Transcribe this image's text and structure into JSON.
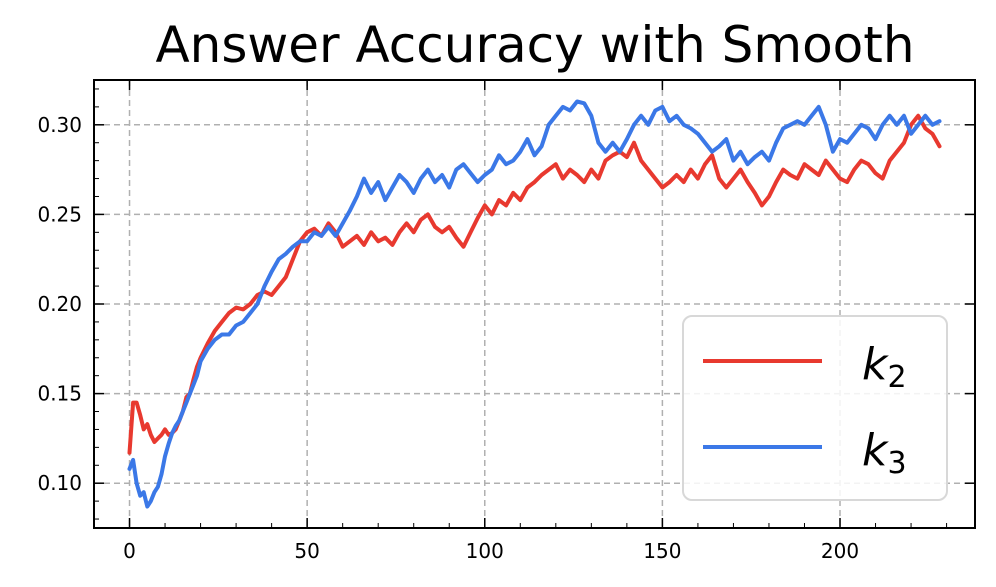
{
  "chart_data": {
    "type": "line",
    "title": "Answer Accuracy with Smooth",
    "xlabel": "",
    "ylabel": "",
    "xlim": [
      -10,
      238
    ],
    "ylim": [
      0.075,
      0.325
    ],
    "xticks": [
      0,
      50,
      100,
      150,
      200
    ],
    "xtick_labels": [
      "0",
      "50",
      "100",
      "150",
      "200"
    ],
    "yticks": [
      0.1,
      0.15,
      0.2,
      0.25,
      0.3
    ],
    "ytick_labels": [
      "0.10",
      "0.15",
      "0.20",
      "0.25",
      "0.30"
    ],
    "grid": true,
    "legend_position": "lower-right",
    "series": [
      {
        "name": "k",
        "name_subscript": "2",
        "color": "#e8392f",
        "x": [
          0,
          1,
          2,
          3,
          4,
          5,
          6,
          7,
          8,
          9,
          10,
          11,
          12,
          13,
          14,
          15,
          16,
          17,
          18,
          19,
          20,
          22,
          24,
          26,
          28,
          30,
          32,
          34,
          36,
          38,
          40,
          42,
          44,
          46,
          48,
          50,
          52,
          54,
          56,
          58,
          60,
          62,
          64,
          66,
          68,
          70,
          72,
          74,
          76,
          78,
          80,
          82,
          84,
          86,
          88,
          90,
          92,
          94,
          96,
          98,
          100,
          102,
          104,
          106,
          108,
          110,
          112,
          114,
          116,
          118,
          120,
          122,
          124,
          126,
          128,
          130,
          132,
          134,
          136,
          138,
          140,
          142,
          144,
          146,
          148,
          150,
          152,
          154,
          156,
          158,
          160,
          162,
          164,
          166,
          168,
          170,
          172,
          174,
          176,
          178,
          180,
          182,
          184,
          186,
          188,
          190,
          192,
          194,
          196,
          198,
          200,
          202,
          204,
          206,
          208,
          210,
          212,
          214,
          216,
          218,
          220,
          222,
          224,
          226,
          228
        ],
        "values": [
          0.117,
          0.145,
          0.145,
          0.138,
          0.13,
          0.133,
          0.127,
          0.123,
          0.125,
          0.127,
          0.13,
          0.127,
          0.128,
          0.13,
          0.135,
          0.14,
          0.148,
          0.15,
          0.158,
          0.165,
          0.17,
          0.178,
          0.185,
          0.19,
          0.195,
          0.198,
          0.197,
          0.2,
          0.205,
          0.207,
          0.205,
          0.21,
          0.215,
          0.225,
          0.235,
          0.24,
          0.242,
          0.238,
          0.245,
          0.24,
          0.232,
          0.235,
          0.238,
          0.233,
          0.24,
          0.235,
          0.237,
          0.233,
          0.24,
          0.245,
          0.24,
          0.247,
          0.25,
          0.243,
          0.24,
          0.243,
          0.237,
          0.232,
          0.24,
          0.248,
          0.255,
          0.25,
          0.258,
          0.255,
          0.262,
          0.258,
          0.265,
          0.268,
          0.272,
          0.275,
          0.278,
          0.27,
          0.275,
          0.272,
          0.268,
          0.275,
          0.27,
          0.28,
          0.283,
          0.285,
          0.282,
          0.29,
          0.28,
          0.275,
          0.27,
          0.265,
          0.268,
          0.272,
          0.268,
          0.275,
          0.27,
          0.278,
          0.283,
          0.27,
          0.265,
          0.27,
          0.275,
          0.268,
          0.262,
          0.255,
          0.26,
          0.268,
          0.275,
          0.272,
          0.27,
          0.278,
          0.275,
          0.272,
          0.28,
          0.275,
          0.27,
          0.268,
          0.275,
          0.28,
          0.278,
          0.273,
          0.27,
          0.28,
          0.285,
          0.29,
          0.3,
          0.305,
          0.298,
          0.295,
          0.288
        ]
      },
      {
        "name": "k",
        "name_subscript": "3",
        "color": "#3b78e7",
        "x": [
          0,
          1,
          2,
          3,
          4,
          5,
          6,
          7,
          8,
          9,
          10,
          11,
          12,
          13,
          14,
          15,
          16,
          17,
          18,
          19,
          20,
          22,
          24,
          26,
          28,
          30,
          32,
          34,
          36,
          38,
          40,
          42,
          44,
          46,
          48,
          50,
          52,
          54,
          56,
          58,
          60,
          62,
          64,
          66,
          68,
          70,
          72,
          74,
          76,
          78,
          80,
          82,
          84,
          86,
          88,
          90,
          92,
          94,
          96,
          98,
          100,
          102,
          104,
          106,
          108,
          110,
          112,
          114,
          116,
          118,
          120,
          122,
          124,
          126,
          128,
          130,
          132,
          134,
          136,
          138,
          140,
          142,
          144,
          146,
          148,
          150,
          152,
          154,
          156,
          158,
          160,
          162,
          164,
          166,
          168,
          170,
          172,
          174,
          176,
          178,
          180,
          182,
          184,
          186,
          188,
          190,
          192,
          194,
          196,
          198,
          200,
          202,
          204,
          206,
          208,
          210,
          212,
          214,
          216,
          218,
          220,
          222,
          224,
          226,
          228
        ],
        "values": [
          0.108,
          0.113,
          0.1,
          0.093,
          0.095,
          0.087,
          0.09,
          0.095,
          0.098,
          0.105,
          0.115,
          0.122,
          0.128,
          0.132,
          0.135,
          0.14,
          0.145,
          0.15,
          0.155,
          0.16,
          0.168,
          0.175,
          0.18,
          0.183,
          0.183,
          0.188,
          0.19,
          0.195,
          0.2,
          0.21,
          0.218,
          0.225,
          0.228,
          0.232,
          0.235,
          0.235,
          0.24,
          0.238,
          0.243,
          0.238,
          0.245,
          0.252,
          0.26,
          0.27,
          0.262,
          0.268,
          0.258,
          0.265,
          0.272,
          0.268,
          0.262,
          0.27,
          0.275,
          0.268,
          0.272,
          0.265,
          0.275,
          0.278,
          0.273,
          0.268,
          0.272,
          0.275,
          0.283,
          0.278,
          0.28,
          0.285,
          0.292,
          0.283,
          0.288,
          0.3,
          0.305,
          0.31,
          0.308,
          0.313,
          0.312,
          0.305,
          0.29,
          0.285,
          0.29,
          0.285,
          0.292,
          0.3,
          0.305,
          0.3,
          0.308,
          0.31,
          0.302,
          0.305,
          0.3,
          0.298,
          0.295,
          0.29,
          0.285,
          0.288,
          0.292,
          0.28,
          0.285,
          0.278,
          0.282,
          0.285,
          0.28,
          0.29,
          0.298,
          0.3,
          0.302,
          0.3,
          0.305,
          0.31,
          0.3,
          0.285,
          0.292,
          0.29,
          0.295,
          0.3,
          0.298,
          0.292,
          0.3,
          0.305,
          0.3,
          0.305,
          0.295,
          0.3,
          0.305,
          0.3,
          0.302
        ]
      }
    ]
  }
}
